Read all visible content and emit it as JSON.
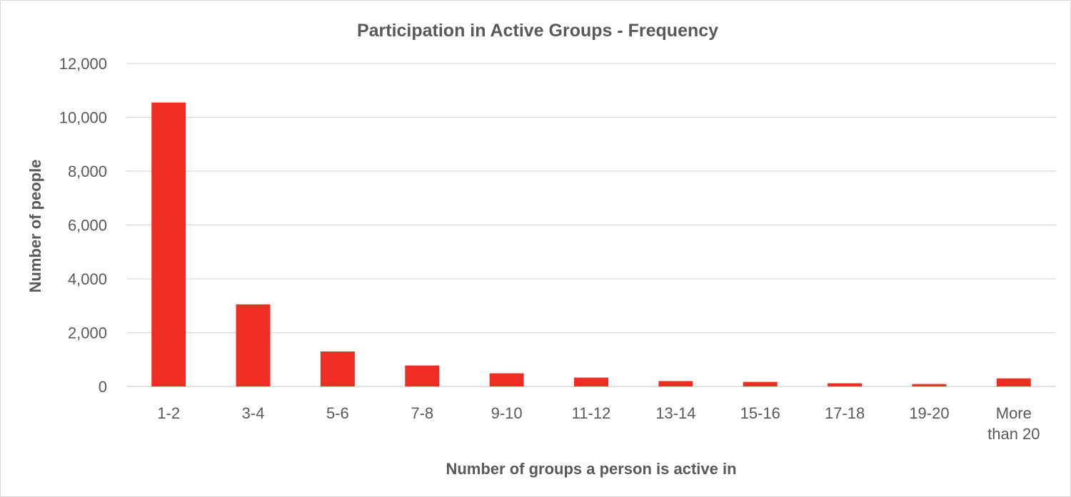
{
  "chart_data": {
    "type": "bar",
    "title": "Participation in Active Groups - Frequency",
    "xlabel": "Number of groups a person is active in",
    "ylabel": "Number of people",
    "categories": [
      [
        "1-2"
      ],
      [
        "3-4"
      ],
      [
        "5-6"
      ],
      [
        "7-8"
      ],
      [
        "9-10"
      ],
      [
        "11-12"
      ],
      [
        "13-14"
      ],
      [
        "15-16"
      ],
      [
        "17-18"
      ],
      [
        "19-20"
      ],
      [
        "More",
        "than 20"
      ]
    ],
    "values": [
      10550,
      3050,
      1300,
      780,
      490,
      330,
      200,
      170,
      120,
      90,
      300
    ],
    "ylim": [
      0,
      12000
    ],
    "yticks": [
      0,
      2000,
      4000,
      6000,
      8000,
      10000,
      12000
    ],
    "ytick_labels": [
      "0",
      "2,000",
      "4,000",
      "6,000",
      "8,000",
      "10,000",
      "12,000"
    ],
    "grid": true,
    "legend": "none",
    "colors": {
      "bar": "#ee2e24",
      "grid": "#d9d9d9",
      "text": "#595959"
    }
  }
}
